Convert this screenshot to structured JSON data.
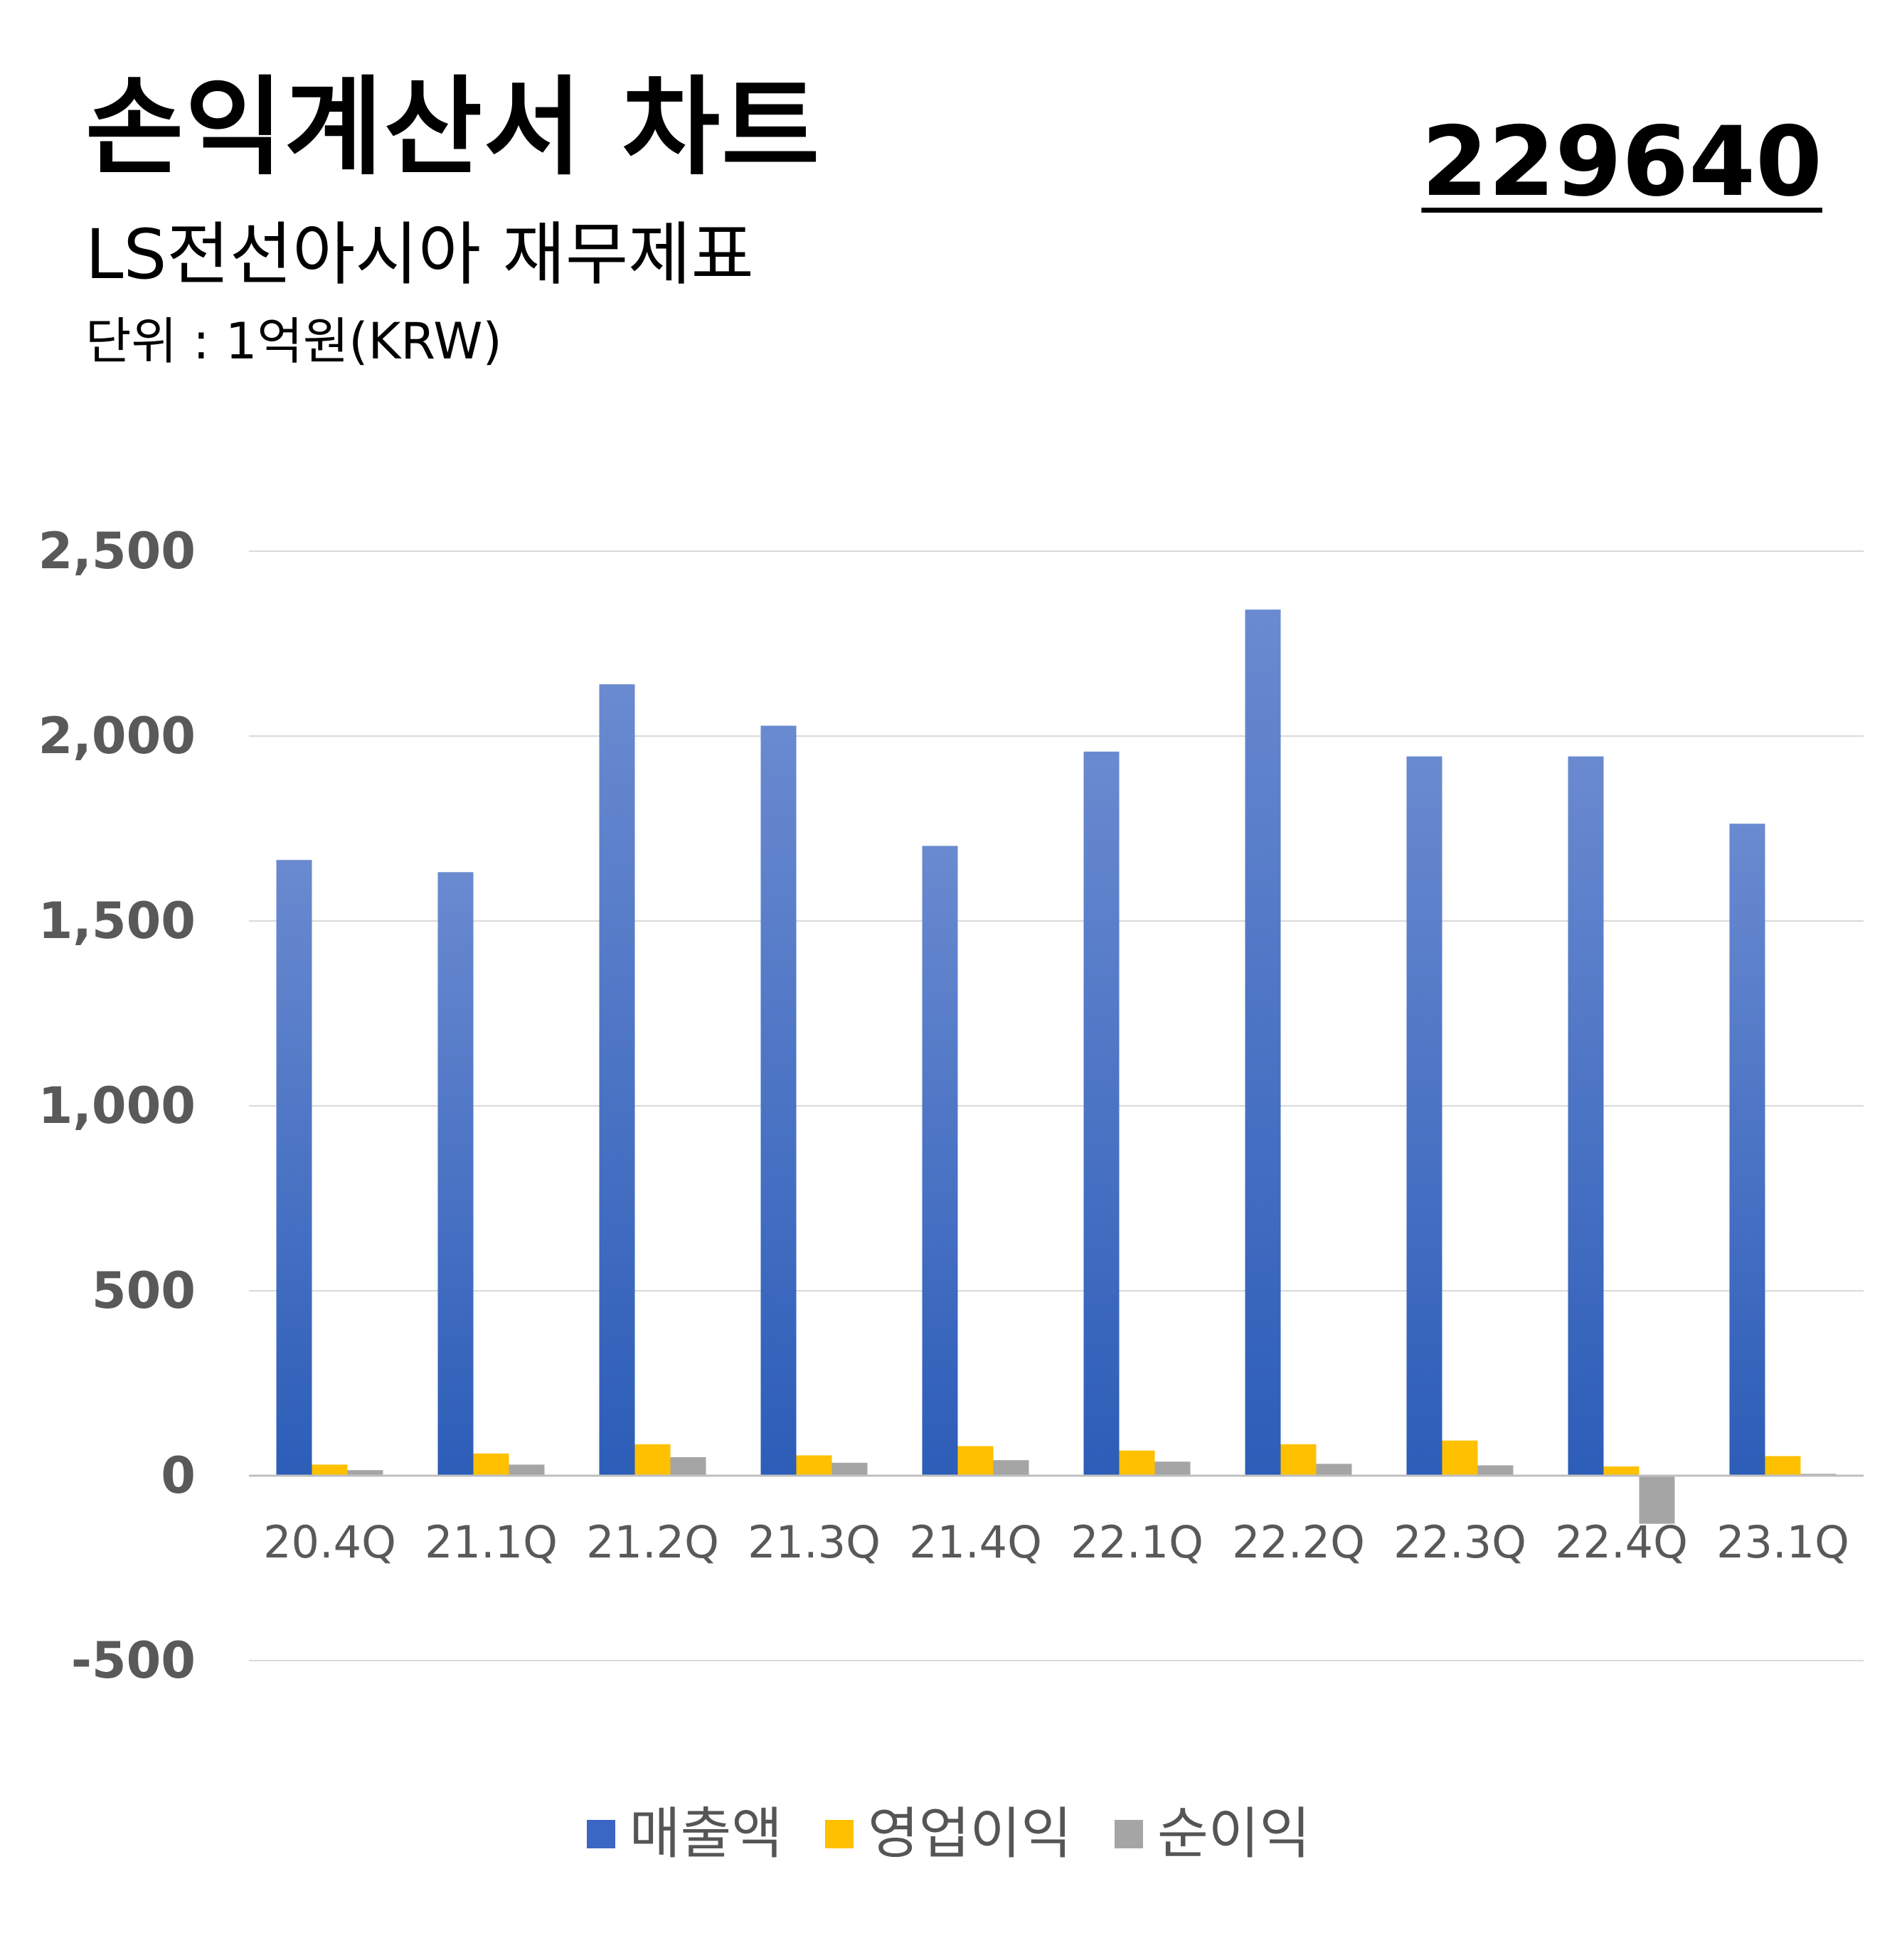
{
  "header": {
    "title": "손익계산서 차트",
    "subtitle": "LS전선아시아 재무제표",
    "unit": "단위 : 1억원(KRW)",
    "code": "229640"
  },
  "chart_data": {
    "type": "bar",
    "title": "손익계산서 차트",
    "categories": [
      "20.4Q",
      "21.1Q",
      "21.2Q",
      "21.3Q",
      "21.4Q",
      "22.1Q",
      "22.2Q",
      "22.3Q",
      "22.4Q",
      "23.1Q"
    ],
    "series": [
      {
        "name": "매출액",
        "color": "#3a66c4",
        "values": [
          1665,
          1632,
          2140,
          2028,
          1703,
          1958,
          2342,
          1945,
          1945,
          1763
        ]
      },
      {
        "name": "영업이익",
        "color": "#ffc000",
        "values": [
          30,
          60,
          85,
          55,
          80,
          68,
          85,
          95,
          25,
          53
        ]
      },
      {
        "name": "순이익",
        "color": "#a5a5a5",
        "values": [
          15,
          30,
          50,
          35,
          42,
          38,
          32,
          28,
          -130,
          5
        ]
      }
    ],
    "ylim": [
      -500,
      2500
    ],
    "yticks": [
      2500,
      2000,
      1500,
      1000,
      500,
      0,
      -500
    ],
    "ytick_labels": [
      "2,500",
      "2,000",
      "1,500",
      "1,000",
      "500",
      "0",
      "-500"
    ],
    "grid": true,
    "legend_position": "bottom"
  }
}
